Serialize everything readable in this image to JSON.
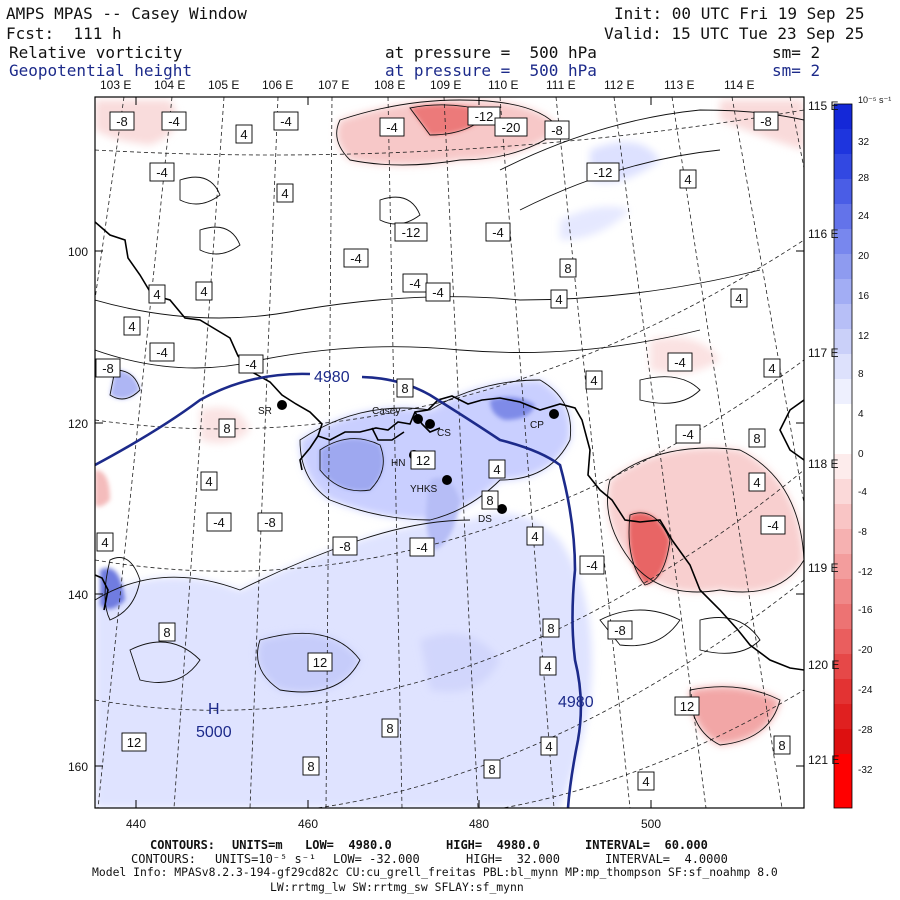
{
  "header": {
    "title": "AMPS MPAS -- Casey Window",
    "init": "Init: 00 UTC Fri 19 Sep 25",
    "forecast": "Fcst:  111 h",
    "valid": "Valid: 15 UTC Tue 23 Sep 25",
    "field1": {
      "name": "Relative vorticity",
      "pressure": "at pressure =  500 hPa",
      "smoothing": "sm= 2"
    },
    "field2": {
      "name": "Geopotential height",
      "pressure": "at pressure =  500 hPa",
      "smoothing": "sm= 2"
    }
  },
  "axes": {
    "top_labels": [
      "103 E",
      "104 E",
      "105 E",
      "106 E",
      "107 E",
      "108 E",
      "109 E",
      "110 E",
      "111 E",
      "112 E",
      "113 E",
      "114 E"
    ],
    "right_labels": [
      "115 E",
      "116 E",
      "117 E",
      "118 E",
      "119 E",
      "120 E",
      "121 E"
    ],
    "left_labels": [
      "100",
      "120",
      "140",
      "160"
    ],
    "bottom_labels": [
      "440",
      "460",
      "480",
      "500"
    ]
  },
  "colorbar": {
    "unit": "10⁻⁵ s⁻¹",
    "ticks": [
      "32",
      "28",
      "24",
      "20",
      "16",
      "12",
      "8",
      "4",
      "0",
      "-4",
      "-8",
      "-12",
      "-16",
      "-20",
      "-24",
      "-28",
      "-32"
    ]
  },
  "stations": [
    {
      "name": "SR"
    },
    {
      "name": "Casey"
    },
    {
      "name": "CS"
    },
    {
      "name": "CP"
    },
    {
      "name": "HN"
    },
    {
      "name": "YHKS"
    },
    {
      "name": "DS"
    }
  ],
  "height_labels": {
    "contour_a": "4980",
    "contour_b": "4980",
    "high_marker": "H",
    "high_value": "5000"
  },
  "vort_labels": [
    "-8",
    "-4",
    "-4",
    "-4",
    "-12",
    "-20",
    "-8",
    "-8",
    "-12",
    "-4",
    "4",
    "4",
    "4",
    "-12",
    "-4",
    "-4",
    "8",
    "-4",
    "-4",
    "4",
    "4",
    "4",
    "4",
    "4",
    "-4",
    "-8",
    "-4",
    "8",
    "4",
    "-4",
    "4",
    "-4",
    "8",
    "8",
    "4",
    "4",
    "-4",
    "-4",
    "-8",
    "-8",
    "-4",
    "4",
    "-4",
    "8",
    "4",
    "12",
    "-8",
    "8",
    "4",
    "4",
    "8",
    "12",
    "12",
    "8",
    "4",
    "8",
    "8",
    "4",
    "12",
    "8",
    "8",
    "8",
    "8",
    "8",
    "-4",
    "-8",
    "-4"
  ],
  "footer": {
    "line1": {
      "label": "CONTOURS:",
      "units": "UNITS=m",
      "low": "LOW=  4980.0",
      "high": "HIGH=  4980.0",
      "interval": "INTERVAL=  60.000"
    },
    "line2": {
      "label": "CONTOURS:",
      "units": "UNITS=10⁻⁵ s⁻¹",
      "low": "LOW= -32.000",
      "high": "HIGH=  32.000",
      "interval": "INTERVAL=  4.0000"
    },
    "model_info": "Model Info: MPASv8.2.3-194-gf29cd82c CU:cu_grell_freitas PBL:bl_mynn MP:mp_thompson SF:sf_noahmp 8.0",
    "model_info2": "LW:rrtmg_lw SW:rrtmg_sw SFLAY:sf_mynn"
  }
}
